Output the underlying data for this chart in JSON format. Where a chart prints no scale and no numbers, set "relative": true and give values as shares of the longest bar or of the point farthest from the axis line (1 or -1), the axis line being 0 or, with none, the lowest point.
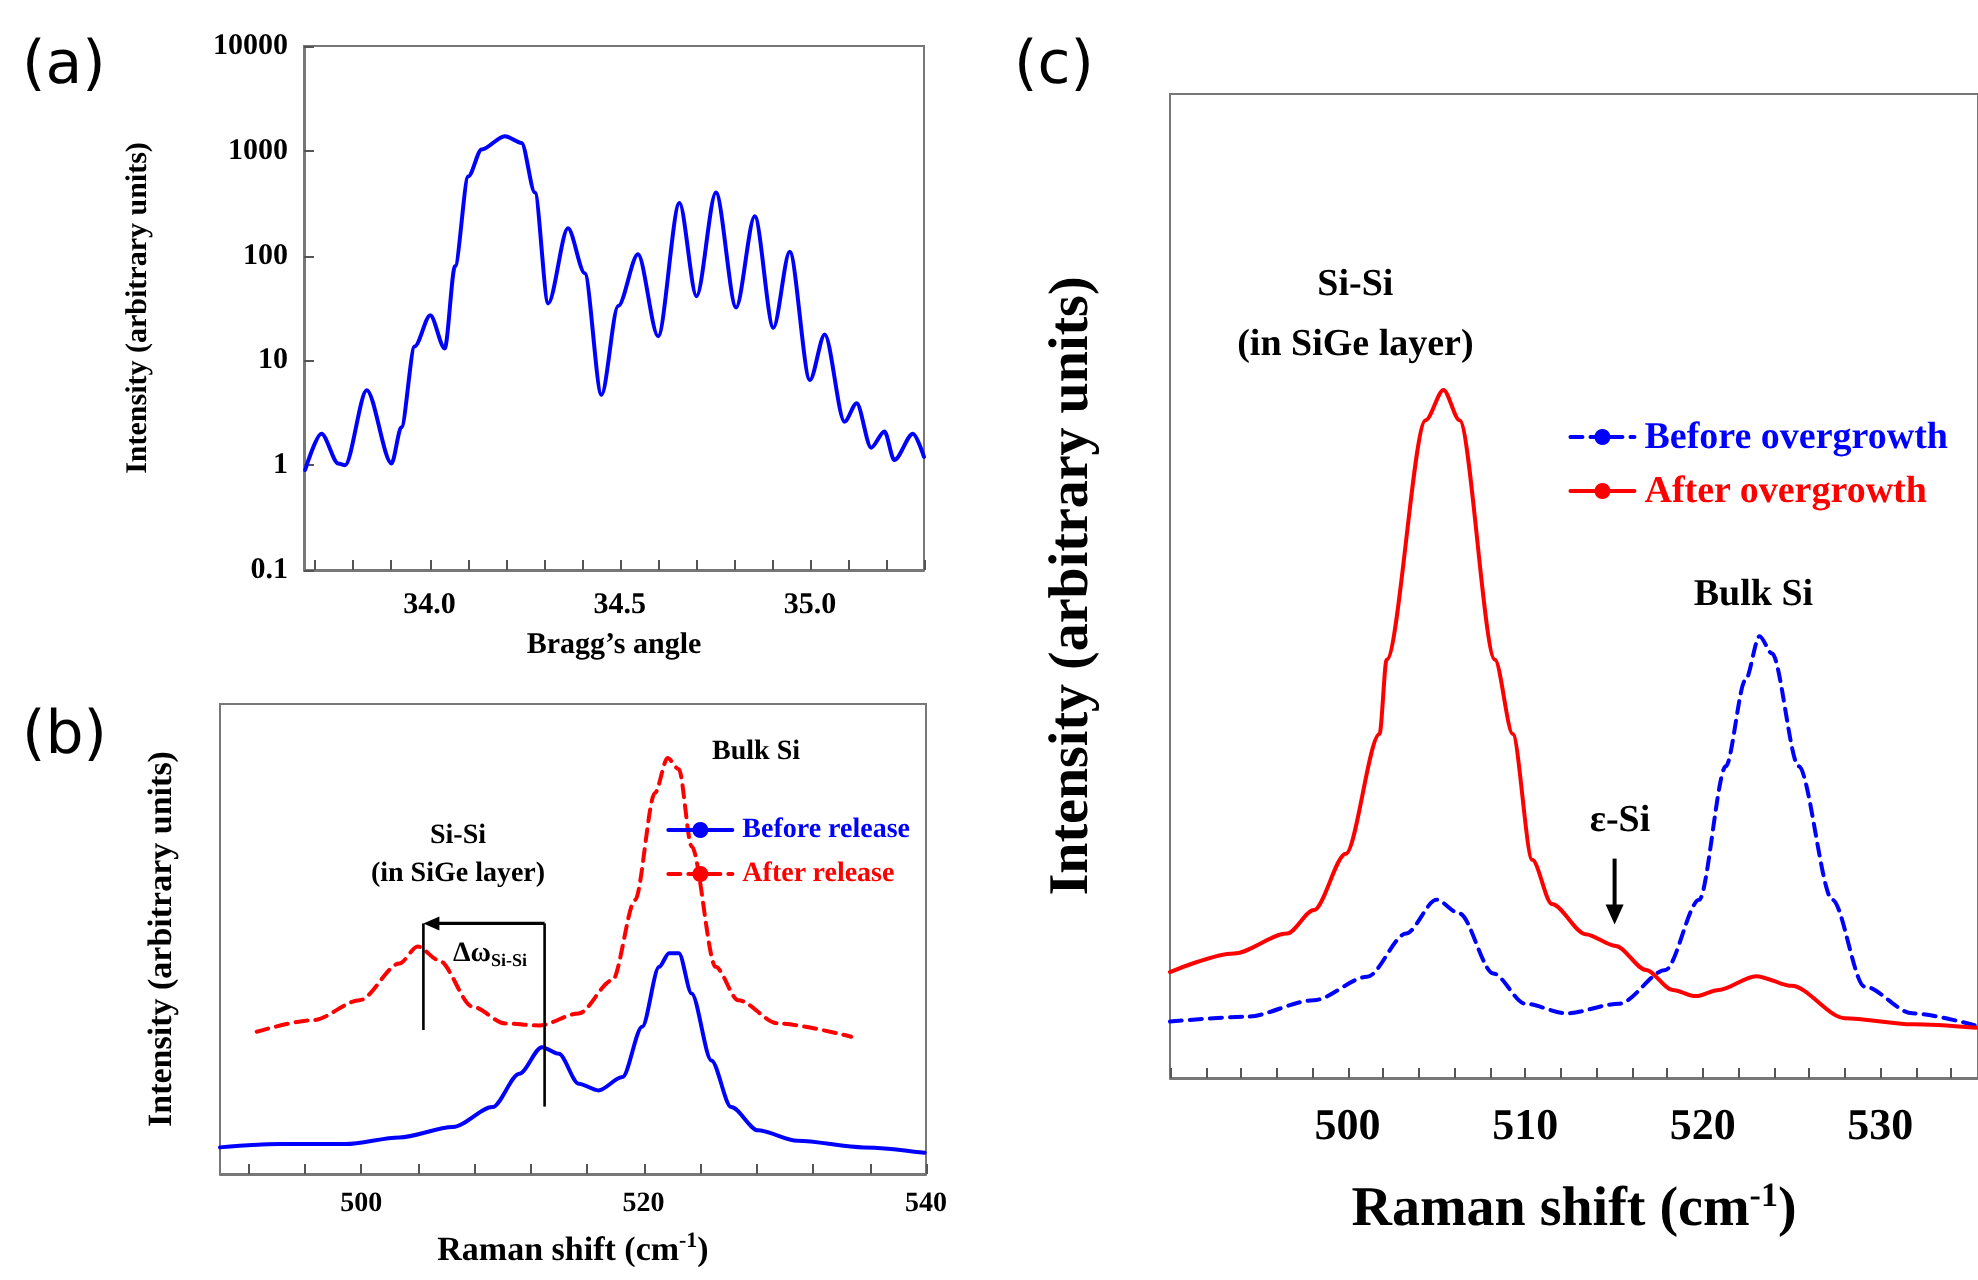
{
  "chart_data": [
    {
      "type": "line",
      "title": "(a)",
      "xlabel": "Bragg’s angle",
      "ylabel": "Intensity (arbitrary units)",
      "log": "y",
      "marker": "none",
      "xlim": [
        33.67,
        35.3
      ],
      "ylim": [
        0.1,
        10000
      ],
      "xticks": [
        {
          "value": 33.7,
          "label": null
        },
        {
          "value": 33.8,
          "label": null
        },
        {
          "value": 33.9,
          "label": null
        },
        {
          "value": 34,
          "label": "34.0"
        },
        {
          "value": 34.1,
          "label": null
        },
        {
          "value": 34.2,
          "label": null
        },
        {
          "value": 34.3,
          "label": null
        },
        {
          "value": 34.4,
          "label": null
        },
        {
          "value": 34.5,
          "label": "34.5"
        },
        {
          "value": 34.6,
          "label": null
        },
        {
          "value": 34.7,
          "label": null
        },
        {
          "value": 34.8,
          "label": null
        },
        {
          "value": 34.9,
          "label": null
        },
        {
          "value": 35,
          "label": "35.0"
        },
        {
          "value": 35.1,
          "label": null
        },
        {
          "value": 35.2,
          "label": null
        },
        {
          "value": 35.3,
          "label": null
        }
      ],
      "yticks": [
        0.1,
        1,
        10,
        100,
        1000,
        10000
      ],
      "series": [
        {
          "color": "#0000ff",
          "line_style": "solid",
          "x": [
            33.673,
            33.716,
            33.76,
            33.778,
            33.835,
            33.9,
            33.926,
            33.961,
            34.002,
            34.04,
            34.067,
            34.102,
            34.137,
            34.198,
            34.242,
            34.277,
            34.312,
            34.364,
            34.408,
            34.452,
            34.496,
            34.548,
            34.601,
            34.657,
            34.702,
            34.753,
            34.806,
            34.855,
            34.904,
            34.947,
            35.0,
            35.039,
            35.091,
            35.123,
            35.161,
            35.196,
            35.222,
            35.271,
            35.3
          ],
          "values": [
            0.9,
            2.0,
            1.04,
            1.0,
            5.2,
            1.04,
            2.3,
            13.6,
            27,
            13,
            79,
            570,
            1030,
            1380,
            1190,
            400,
            35,
            182,
            68,
            4.7,
            33,
            103,
            17,
            318,
            41,
            400,
            32,
            238,
            20.5,
            109,
            6.5,
            17.7,
            2.6,
            3.9,
            1.47,
            2.1,
            1.12,
            2.0,
            1.2
          ]
        }
      ]
    },
    {
      "type": "line",
      "title": "(b)",
      "xlabel": "Raman shift (cm$^{-1}$)",
      "ylabel": "Intensity (arbitrary units)",
      "relative": true,
      "marker": "none",
      "legend": "top right",
      "xlim": [
        490,
        540
      ],
      "xticks": [
        {
          "value": 492,
          "label": null
        },
        {
          "value": 496,
          "label": null
        },
        500,
        {
          "value": 504,
          "label": null
        },
        {
          "value": 508,
          "label": null
        },
        {
          "value": 512,
          "label": null
        },
        {
          "value": 516,
          "label": null
        },
        520,
        {
          "value": 524,
          "label": null
        },
        {
          "value": 528,
          "label": null
        },
        {
          "value": 532,
          "label": null
        },
        {
          "value": 536,
          "label": null
        },
        540
      ],
      "annotations": [
        "Si-Si",
        "(in SiGe layer)",
        "Bulk Si",
        "Δω$_{Si-Si}$"
      ],
      "series": [
        {
          "name": "Before release",
          "color": "#0000ff",
          "line_style": "solid",
          "x": [
            490,
            494.2,
            498.9,
            502.7,
            506.5,
            509.3,
            511.2,
            512.8,
            514.0,
            515.4,
            516.8,
            518.5,
            519.9,
            521.1,
            521.8,
            522.5,
            523.4,
            524.8,
            526.2,
            528.1,
            530.9,
            535.6,
            539.9
          ],
          "values": [
            0.064,
            0.072,
            0.072,
            0.088,
            0.113,
            0.161,
            0.241,
            0.305,
            0.289,
            0.217,
            0.201,
            0.233,
            0.354,
            0.498,
            0.531,
            0.531,
            0.434,
            0.273,
            0.161,
            0.105,
            0.08,
            0.064,
            0.051
          ]
        },
        {
          "name": "After release",
          "color": "#ff0000",
          "line_style": "dashed",
          "x": [
            492.6,
            496.6,
            499.9,
            502.7,
            504.0,
            505.5,
            507.9,
            510.2,
            512.6,
            515.4,
            517.8,
            519.4,
            520.8,
            521.7,
            522.5,
            523.4,
            525.1,
            526.7,
            529.5,
            534.7
          ],
          "values": [
            0.342,
            0.37,
            0.418,
            0.506,
            0.547,
            0.514,
            0.402,
            0.362,
            0.357,
            0.386,
            0.466,
            0.659,
            0.916,
            1,
            0.973,
            0.788,
            0.498,
            0.418,
            0.362,
            0.33
          ]
        }
      ]
    },
    {
      "type": "line",
      "title": "(c)",
      "xlabel": "Raman shift (cm$^{-1}$)",
      "ylabel": "Intensity (arbitrary units)",
      "relative": true,
      "marker": "none",
      "legend": "top right",
      "xlim": [
        490,
        535.5
      ],
      "xticks": [
        {
          "value": 490,
          "label": null
        },
        {
          "value": 492,
          "label": null
        },
        {
          "value": 494,
          "label": null
        },
        {
          "value": 496,
          "label": null
        },
        {
          "value": 498,
          "label": null
        },
        500,
        {
          "value": 502,
          "label": null
        },
        {
          "value": 504,
          "label": null
        },
        {
          "value": 506,
          "label": null
        },
        {
          "value": 508,
          "label": null
        },
        510,
        {
          "value": 512,
          "label": null
        },
        {
          "value": 514,
          "label": null
        },
        {
          "value": 516,
          "label": null
        },
        {
          "value": 518,
          "label": null
        },
        520,
        {
          "value": 522,
          "label": null
        },
        {
          "value": 524,
          "label": null
        },
        {
          "value": 526,
          "label": null
        },
        {
          "value": 528,
          "label": null
        },
        530,
        {
          "value": 532,
          "label": null
        },
        {
          "value": 534,
          "label": null
        }
      ],
      "annotations": [
        "Si-Si",
        "(in SiGe layer)",
        "Bulk Si",
        "ε-Si"
      ],
      "series": [
        {
          "name": "Before overgrowth",
          "color": "#0000ff",
          "line_style": "dashed",
          "x": [
            490,
            494.3,
            498.1,
            501.1,
            503.3,
            505.0,
            506.3,
            508.2,
            510.0,
            512.3,
            515.3,
            517.9,
            519.8,
            521.3,
            522.4,
            523.2,
            523.9,
            525.4,
            527.3,
            529.1,
            531.8,
            535.4
          ],
          "values": [
            0.082,
            0.089,
            0.113,
            0.147,
            0.21,
            0.259,
            0.239,
            0.152,
            0.108,
            0.094,
            0.108,
            0.157,
            0.259,
            0.453,
            0.578,
            0.642,
            0.617,
            0.453,
            0.259,
            0.133,
            0.094,
            0.076
          ]
        },
        {
          "name": "After overgrowth",
          "color": "#ff0000",
          "line_style": "solid",
          "x": [
            490,
            493.6,
            496.6,
            498.1,
            499.9,
            501.8,
            502.2,
            504.4,
            505.4,
            506.3,
            508.3,
            509.3,
            510.4,
            511.5,
            513.4,
            515.1,
            516.8,
            518.3,
            519.6,
            520.9,
            523.0,
            525.0,
            528.0,
            531.8,
            535.4
          ],
          "values": [
            0.154,
            0.181,
            0.21,
            0.244,
            0.326,
            0.5,
            0.608,
            0.956,
            1,
            0.956,
            0.608,
            0.5,
            0.317,
            0.253,
            0.209,
            0.192,
            0.157,
            0.128,
            0.119,
            0.128,
            0.148,
            0.134,
            0.087,
            0.078,
            0.073
          ]
        }
      ]
    }
  ]
}
